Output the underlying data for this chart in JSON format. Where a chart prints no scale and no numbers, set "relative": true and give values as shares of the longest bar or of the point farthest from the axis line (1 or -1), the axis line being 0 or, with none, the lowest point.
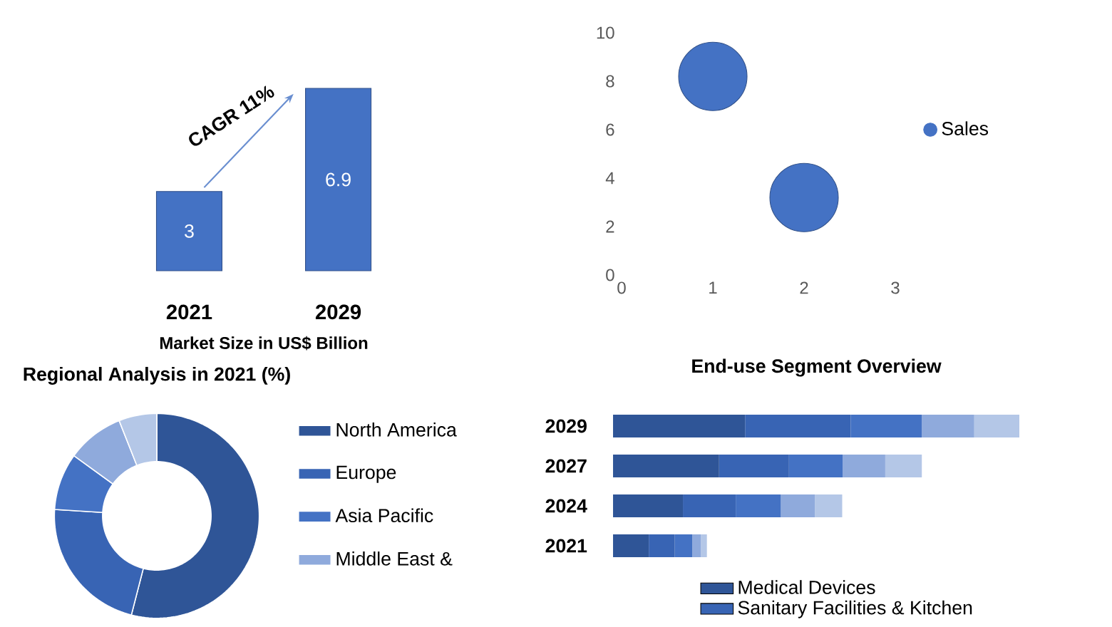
{
  "chart_data": [
    {
      "type": "bar",
      "categories": [
        "2021",
        "2029"
      ],
      "values": [
        3,
        6.9
      ],
      "color": "#4472c4",
      "data_labels": true,
      "xlabel": "Market Size in US$ Billion",
      "annotations": [
        "CAGR 11%"
      ]
    },
    {
      "type": "bubble",
      "x": [
        1,
        2
      ],
      "xlim": [
        0,
        3
      ],
      "xticks": [
        0,
        1,
        2,
        3
      ],
      "ylim": [
        0,
        10
      ],
      "yticks": [
        0,
        2,
        4,
        6,
        8,
        10
      ],
      "legend": "right",
      "series": [
        {
          "name": "Sales",
          "color": "#4472c4",
          "values": [
            8.2,
            3.2
          ],
          "sizes": [
            1,
            1
          ]
        }
      ]
    },
    {
      "type": "donut",
      "title": "Regional Analysis in 2021 (%)",
      "categories": [
        "North America",
        "Europe",
        "Asia Pacific",
        "Middle East &",
        null
      ],
      "values": [
        54,
        22,
        9,
        9,
        6
      ],
      "colors": [
        "#2f5597",
        "#3864b4",
        "#4472c4",
        "#8faadc",
        "#b4c7e7"
      ],
      "legend": "right"
    },
    {
      "type": "bar",
      "orientation": "horizontal",
      "stacked": true,
      "relative": true,
      "title": "End-use Segment Overview",
      "categories": [
        "2029",
        "2027",
        "2024",
        "2021"
      ],
      "legend": "bottom",
      "series": [
        {
          "name": "Medical Devices",
          "color": "#2f5597",
          "values": [
            0.325,
            0.261,
            0.172,
            0.088
          ]
        },
        {
          "name": "Sanitary Facilities & Kitchen",
          "color": "#3864b4",
          "values": [
            0.26,
            0.172,
            0.13,
            0.064
          ]
        },
        {
          "color": "#4472c4",
          "values": [
            0.175,
            0.132,
            0.111,
            0.043
          ]
        },
        {
          "color": "#8faadc",
          "values": [
            0.129,
            0.105,
            0.084,
            0.021
          ]
        },
        {
          "color": "#b4c7e7",
          "values": [
            0.111,
            0.09,
            0.067,
            0.015
          ]
        }
      ]
    }
  ]
}
